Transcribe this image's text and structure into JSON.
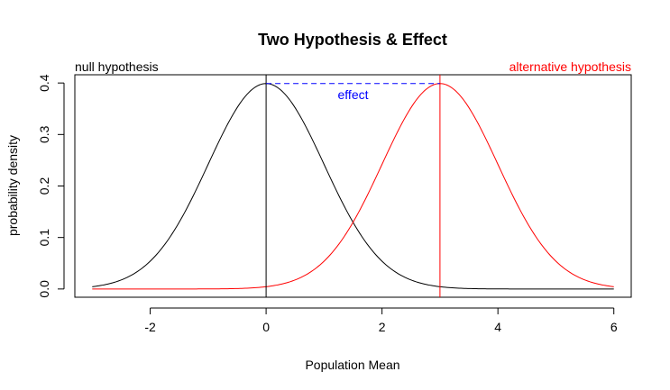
{
  "chart_data": {
    "type": "line",
    "title": "Two Hypothesis & Effect",
    "xlabel": "Population Mean",
    "ylabel": "probability density",
    "xlim": [
      -3.3,
      6.3
    ],
    "ylim": [
      -0.016,
      0.416
    ],
    "x_ticks": [
      -2,
      0,
      2,
      4,
      6
    ],
    "x_tick_labels": [
      "-2",
      "0",
      "2",
      "4",
      "6"
    ],
    "y_ticks": [
      0.0,
      0.1,
      0.2,
      0.3,
      0.4
    ],
    "y_tick_labels": [
      "0.0",
      "0.1",
      "0.2",
      "0.3",
      "0.4"
    ],
    "grid": false,
    "series": [
      {
        "name": "null hypothesis",
        "distribution": "normal",
        "mean": 0,
        "sd": 1,
        "x_range": [
          -3,
          6
        ],
        "color": "#000000"
      },
      {
        "name": "alternative hypothesis",
        "distribution": "normal",
        "mean": 3,
        "sd": 1,
        "x_range": [
          -3,
          6
        ],
        "color": "#ff0000"
      }
    ],
    "reference_lines": [
      {
        "type": "vertical",
        "x": 0,
        "color": "#000000"
      },
      {
        "type": "vertical",
        "x": 3,
        "color": "#ff0000"
      }
    ],
    "effect": {
      "label": "effect",
      "x_start": 0,
      "x_end": 3,
      "y": 0.3989,
      "style": "dashed",
      "color": "#0000ff"
    },
    "annotations": [
      {
        "text": "null hypothesis",
        "color": "#000000"
      },
      {
        "text": "alternative hypothesis",
        "color": "#ff0000"
      }
    ]
  }
}
